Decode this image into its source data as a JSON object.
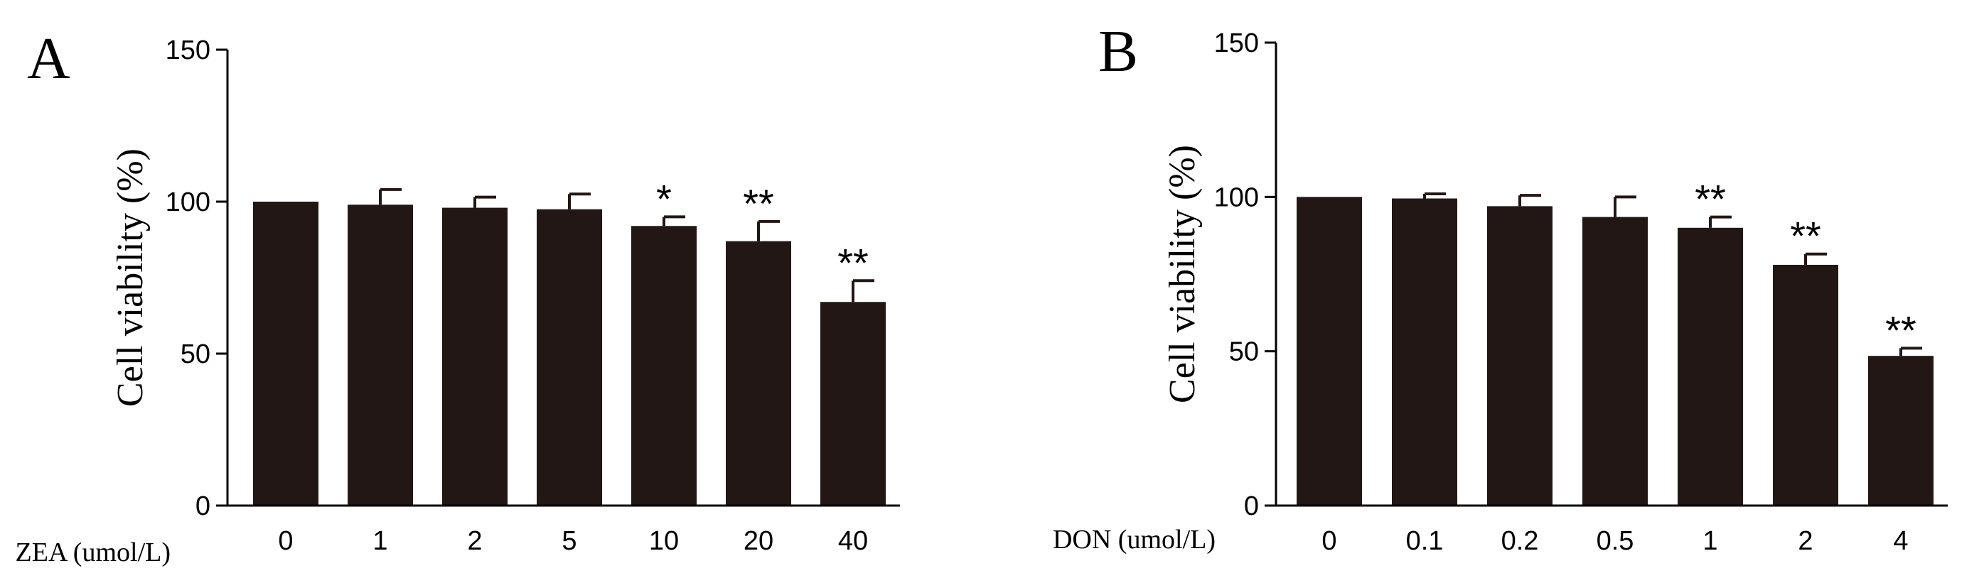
{
  "colors": {
    "bar": "#221714",
    "axis": "#000000",
    "background": "#ffffff"
  },
  "chart_data": [
    {
      "type": "bar",
      "panel_label": "A",
      "xlabel": "ZEA (umol/L)",
      "ylabel": "Cell viability (%)",
      "categories": [
        "0",
        "1",
        "2",
        "5",
        "10",
        "20",
        "40"
      ],
      "values": [
        100,
        99,
        98,
        97.5,
        92,
        87,
        67
      ],
      "errors": [
        0,
        5,
        3.5,
        5,
        3,
        6.5,
        7
      ],
      "significance": [
        "",
        "",
        "",
        "",
        "*",
        "**",
        "**"
      ],
      "ylim": [
        0,
        150
      ],
      "yticks": [
        "0",
        "50",
        "100",
        "150"
      ],
      "grid": false
    },
    {
      "type": "bar",
      "panel_label": "B",
      "xlabel": "DON (umol/L)",
      "ylabel": "Cell viability (%)",
      "categories": [
        "0",
        "0.1",
        "0.2",
        "0.5",
        "1",
        "2",
        "4"
      ],
      "values": [
        100,
        99.5,
        97,
        93.5,
        90,
        78,
        48.5
      ],
      "errors": [
        0,
        1.5,
        3.5,
        6.5,
        3.5,
        3.5,
        2.5
      ],
      "significance": [
        "",
        "",
        "",
        "",
        "**",
        "**",
        "**"
      ],
      "ylim": [
        0,
        150
      ],
      "yticks": [
        "0",
        "50",
        "100",
        "150"
      ],
      "grid": false
    }
  ]
}
